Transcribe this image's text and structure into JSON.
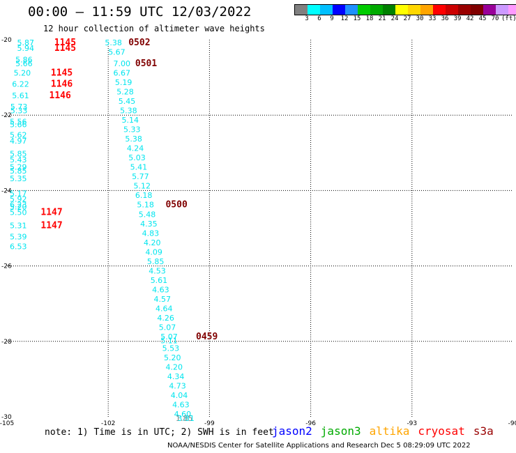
{
  "header": {
    "title": "00:00 – 11:59 UTC 12/03/2022",
    "subtitle": "12 hour collection of altimeter wave heights"
  },
  "colorbar": {
    "swatches": [
      "#808080",
      "#00ffff",
      "#00bfff",
      "#0000ff",
      "#1e90ff",
      "#00cc00",
      "#00aa00",
      "#008000",
      "#ffff00",
      "#ffd700",
      "#ffa500",
      "#ff0000",
      "#cc0000",
      "#990000",
      "#800000",
      "#990099",
      "#cc99ff",
      "#ff99ff",
      "#000000"
    ],
    "labels": [
      "3",
      "6",
      "9",
      "12",
      "15",
      "18",
      "21",
      "24",
      "27",
      "30",
      "33",
      "36",
      "39",
      "42",
      "45",
      "70",
      "(ft)"
    ]
  },
  "footer": {
    "note": "note: 1) Time is in UTC; 2) SWH is in feet",
    "credit": "NOAA/NESDIS Center for Satellite Applications and Research    Dec  5 08:29:09 UTC 2022"
  },
  "legend": [
    {
      "name": "jason2",
      "color": "#0000ff"
    },
    {
      "name": "jason3",
      "color": "#00aa00"
    },
    {
      "name": "altika",
      "color": "#ffa500"
    },
    {
      "name": "cryosat",
      "color": "#ff0000"
    },
    {
      "name": "s3a",
      "color": "#990000"
    }
  ],
  "axes": {
    "x_ticks": [
      "-105",
      "-102",
      "-99",
      "-96",
      "-93",
      "-90"
    ],
    "y_ticks": [
      "-20",
      "-22",
      "-24",
      "-26",
      "-28",
      "-30"
    ]
  },
  "chart_data": {
    "type": "scatter",
    "xlim": [
      -105,
      -90
    ],
    "ylim": [
      -30,
      -20
    ],
    "grid": true,
    "tracks": [
      {
        "color": "#00e5ee",
        "points": [
          {
            "lon": -104.7,
            "lat": -20.15,
            "swh": "5.87"
          },
          {
            "lon": -104.7,
            "lat": -20.3,
            "swh": "5.94"
          },
          {
            "lon": -104.75,
            "lat": -20.6,
            "swh": "5.86"
          },
          {
            "lon": -104.75,
            "lat": -20.7,
            "swh": "5.66"
          },
          {
            "lon": -104.8,
            "lat": -20.95,
            "swh": "5.20"
          },
          {
            "lon": -104.85,
            "lat": -21.25,
            "swh": "6.22"
          },
          {
            "lon": -104.85,
            "lat": -21.55,
            "swh": "5.61"
          },
          {
            "lon": -104.9,
            "lat": -21.85,
            "swh": "5.73"
          },
          {
            "lon": -104.9,
            "lat": -21.95,
            "swh": "5.33"
          },
          {
            "lon": -104.95,
            "lat": -22.25,
            "swh": "5.56"
          },
          {
            "lon": -104.95,
            "lat": -22.32,
            "swh": "5.66"
          },
          {
            "lon": -105.0,
            "lat": -22.6,
            "swh": "5.62"
          },
          {
            "lon": -105.0,
            "lat": -22.75,
            "swh": "4.97"
          },
          {
            "lon": -105.0,
            "lat": -23.1,
            "swh": "5.85"
          },
          {
            "lon": -105.05,
            "lat": -23.25,
            "swh": "5.43"
          },
          {
            "lon": -105.05,
            "lat": -23.45,
            "swh": "5.29"
          },
          {
            "lon": -105.05,
            "lat": -23.55,
            "swh": "5.85"
          },
          {
            "lon": -105.05,
            "lat": -23.75,
            "swh": "5.35"
          },
          {
            "lon": -105.1,
            "lat": -24.15,
            "swh": "5.17"
          },
          {
            "lon": -105.1,
            "lat": -24.3,
            "swh": "5.92"
          },
          {
            "lon": -105.1,
            "lat": -24.45,
            "swh": "6.23"
          },
          {
            "lon": -105.1,
            "lat": -24.5,
            "swh": "5.20"
          },
          {
            "lon": -105.1,
            "lat": -24.65,
            "swh": "5.50"
          },
          {
            "lon": -105.15,
            "lat": -25.0,
            "swh": "5.31"
          },
          {
            "lon": -105.15,
            "lat": -25.3,
            "swh": "5.39"
          },
          {
            "lon": -105.2,
            "lat": -25.55,
            "swh": "6.53"
          }
        ]
      },
      {
        "color": "#00e5ee",
        "points": [
          {
            "lon": -102.1,
            "lat": -20.15,
            "swh": "5.38"
          },
          {
            "lon": -102.0,
            "lat": -20.4,
            "swh": "5.67"
          },
          {
            "lon": -101.85,
            "lat": -20.7,
            "swh": "7.00"
          },
          {
            "lon": -101.85,
            "lat": -20.95,
            "swh": "6.67"
          },
          {
            "lon": -101.8,
            "lat": -21.2,
            "swh": "5.19"
          },
          {
            "lon": -101.75,
            "lat": -21.45,
            "swh": "5.28"
          },
          {
            "lon": -101.7,
            "lat": -21.7,
            "swh": "5.45"
          },
          {
            "lon": -101.65,
            "lat": -21.95,
            "swh": "5.38"
          },
          {
            "lon": -101.6,
            "lat": -22.2,
            "swh": "5.14"
          },
          {
            "lon": -101.55,
            "lat": -22.45,
            "swh": "5.33"
          },
          {
            "lon": -101.5,
            "lat": -22.7,
            "swh": "5.38"
          },
          {
            "lon": -101.45,
            "lat": -22.95,
            "swh": "4.24"
          },
          {
            "lon": -101.4,
            "lat": -23.2,
            "swh": "5.03"
          },
          {
            "lon": -101.35,
            "lat": -23.45,
            "swh": "5.41"
          },
          {
            "lon": -101.3,
            "lat": -23.7,
            "swh": "5.77"
          },
          {
            "lon": -101.25,
            "lat": -23.95,
            "swh": "5.12"
          },
          {
            "lon": -101.2,
            "lat": -24.2,
            "swh": "6.18"
          },
          {
            "lon": -101.15,
            "lat": -24.45,
            "swh": "5.18"
          },
          {
            "lon": -101.1,
            "lat": -24.7,
            "swh": "5.48"
          },
          {
            "lon": -101.05,
            "lat": -24.95,
            "swh": "4.35"
          },
          {
            "lon": -101.0,
            "lat": -25.2,
            "swh": "4.83"
          },
          {
            "lon": -100.95,
            "lat": -25.45,
            "swh": "4.20"
          },
          {
            "lon": -100.9,
            "lat": -25.7,
            "swh": "4.09"
          },
          {
            "lon": -100.85,
            "lat": -25.95,
            "swh": "5.85"
          },
          {
            "lon": -100.8,
            "lat": -26.2,
            "swh": "4.53"
          },
          {
            "lon": -100.75,
            "lat": -26.45,
            "swh": "5.61"
          },
          {
            "lon": -100.7,
            "lat": -26.7,
            "swh": "4.63"
          },
          {
            "lon": -100.65,
            "lat": -26.95,
            "swh": "4.57"
          },
          {
            "lon": -100.6,
            "lat": -27.2,
            "swh": "4.64"
          },
          {
            "lon": -100.55,
            "lat": -27.45,
            "swh": "4.26"
          },
          {
            "lon": -100.5,
            "lat": -27.7,
            "swh": "5.07"
          },
          {
            "lon": -100.45,
            "lat": -27.95,
            "swh": "5.07"
          },
          {
            "lon": -100.45,
            "lat": -28.05,
            "swh": "5.11"
          },
          {
            "lon": -100.4,
            "lat": -28.25,
            "swh": "5.53"
          },
          {
            "lon": -100.35,
            "lat": -28.5,
            "swh": "5.20"
          },
          {
            "lon": -100.3,
            "lat": -28.75,
            "swh": "4.20"
          },
          {
            "lon": -100.25,
            "lat": -29.0,
            "swh": "4.34"
          },
          {
            "lon": -100.2,
            "lat": -29.25,
            "swh": "4.73"
          },
          {
            "lon": -100.15,
            "lat": -29.5,
            "swh": "4.04"
          },
          {
            "lon": -100.1,
            "lat": -29.75,
            "swh": "4.63"
          },
          {
            "lon": -100.05,
            "lat": -30.0,
            "swh": "4.60"
          },
          {
            "lon": -100.0,
            "lat": -30.25,
            "swh": "1.85",
            "color": "#808080"
          },
          {
            "lon": -99.95,
            "lat": -30.5,
            "swh": "3.81"
          }
        ]
      }
    ],
    "time_labels": [
      {
        "lon": -103.6,
        "lat": -20.15,
        "text": "1145",
        "color": "#ff0000"
      },
      {
        "lon": -103.6,
        "lat": -20.3,
        "text": "1145",
        "color": "#ff0000"
      },
      {
        "lon": -103.7,
        "lat": -20.95,
        "text": "1145",
        "color": "#ff0000"
      },
      {
        "lon": -103.7,
        "lat": -21.25,
        "text": "1146",
        "color": "#ff0000"
      },
      {
        "lon": -103.75,
        "lat": -21.55,
        "text": "1146",
        "color": "#ff0000"
      },
      {
        "lon": -104.0,
        "lat": -24.65,
        "text": "1147",
        "color": "#ff0000"
      },
      {
        "lon": -104.0,
        "lat": -25.0,
        "text": "1147",
        "color": "#ff0000"
      },
      {
        "lon": -101.4,
        "lat": -20.15,
        "text": "0502",
        "color": "#800000"
      },
      {
        "lon": -101.2,
        "lat": -20.7,
        "text": "0501",
        "color": "#800000"
      },
      {
        "lon": -100.3,
        "lat": -24.45,
        "text": "0500",
        "color": "#800000"
      },
      {
        "lon": -99.4,
        "lat": -27.95,
        "text": "0459",
        "color": "#800000"
      }
    ]
  }
}
